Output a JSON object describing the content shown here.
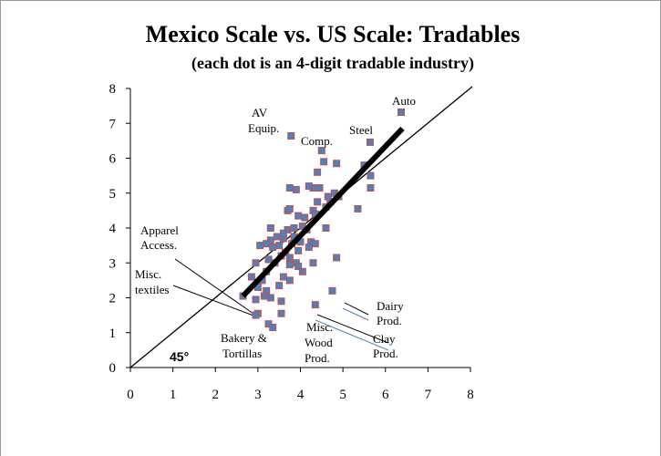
{
  "chart_data": {
    "type": "scatter",
    "title": "Mexico Scale vs. US Scale: Tradables",
    "subtitle": "(each dot is an 4-digit tradable industry)",
    "xlim": [
      0,
      8
    ],
    "ylim": [
      0,
      8
    ],
    "xticks": [
      0,
      1,
      2,
      3,
      4,
      5,
      6,
      7,
      8
    ],
    "yticks": [
      0,
      1,
      2,
      3,
      4,
      5,
      6,
      7,
      8
    ],
    "series": [
      {
        "color": "#4f81bd",
        "x": [
          6.37,
          3.78,
          5.64,
          4.5,
          4.55,
          4.85,
          4.4,
          3.75,
          3.9,
          4.3,
          4.2,
          4.45,
          5.5,
          5.65,
          5.65,
          4.8,
          4.9,
          4.65,
          4.7,
          4.4,
          4.6,
          4.3,
          4.35,
          4.1,
          3.95,
          3.7,
          3.75,
          5.35,
          3.3,
          3.7,
          3.85,
          4.05,
          4.15,
          4.6,
          3.45,
          3.6,
          3.3,
          3.2,
          3.05,
          3.35,
          3.5,
          3.8,
          4.0,
          4.25,
          4.35,
          4.2,
          3.95,
          3.65,
          3.55,
          3.75,
          3.9,
          3.75,
          3.95,
          4.05,
          3.4,
          2.95,
          3.25,
          4.3,
          4.85,
          2.85,
          3.1,
          3.2,
          3.6,
          3.75,
          3.5,
          3.0,
          3.2,
          3.15,
          2.65,
          2.95,
          3.3,
          3.55,
          4.75,
          4.35,
          3.0,
          2.95,
          3.55,
          3.25,
          3.35,
          3.6,
          3.85
        ],
        "values": [
          7.32,
          6.64,
          6.46,
          6.22,
          5.9,
          5.85,
          5.6,
          5.15,
          5.1,
          5.15,
          5.2,
          5.15,
          5.8,
          5.5,
          5.15,
          5.0,
          4.9,
          4.9,
          4.75,
          4.75,
          4.6,
          4.5,
          4.4,
          4.3,
          4.35,
          4.5,
          4.55,
          4.55,
          4.0,
          3.95,
          4.0,
          4.05,
          3.95,
          4.0,
          3.75,
          3.7,
          3.65,
          3.55,
          3.5,
          3.45,
          3.5,
          3.55,
          3.6,
          3.6,
          3.55,
          3.45,
          3.35,
          3.3,
          3.2,
          3.15,
          3.0,
          2.95,
          2.9,
          2.75,
          3.0,
          3.0,
          3.1,
          3.0,
          3.15,
          2.6,
          2.5,
          2.75,
          2.6,
          2.5,
          2.35,
          2.3,
          2.2,
          2.05,
          2.05,
          1.95,
          2.0,
          1.9,
          2.2,
          1.8,
          1.55,
          1.5,
          1.55,
          1.25,
          1.15,
          3.85,
          3.75
        ]
      }
    ],
    "trend_line": {
      "x": [
        2.65,
        6.4
      ],
      "y": [
        2.05,
        6.85
      ]
    },
    "annotations": [
      {
        "lines": [
          "Auto"
        ]
      },
      {
        "lines": [
          "AV",
          "Equip."
        ]
      },
      {
        "lines": [
          "Comp."
        ]
      },
      {
        "lines": [
          "Steel"
        ]
      },
      {
        "lines": [
          "Apparel",
          "Access."
        ]
      },
      {
        "lines": [
          "Misc.",
          "textiles"
        ]
      },
      {
        "lines": [
          "Bakery &",
          "Tortillas"
        ]
      },
      {
        "lines": [
          "Misc.",
          "Wood",
          "Prod."
        ]
      },
      {
        "lines": [
          "Dairy",
          "Prod."
        ]
      },
      {
        "lines": [
          "Clay",
          "Prod."
        ]
      },
      {
        "lines": [
          "45°"
        ]
      }
    ]
  }
}
